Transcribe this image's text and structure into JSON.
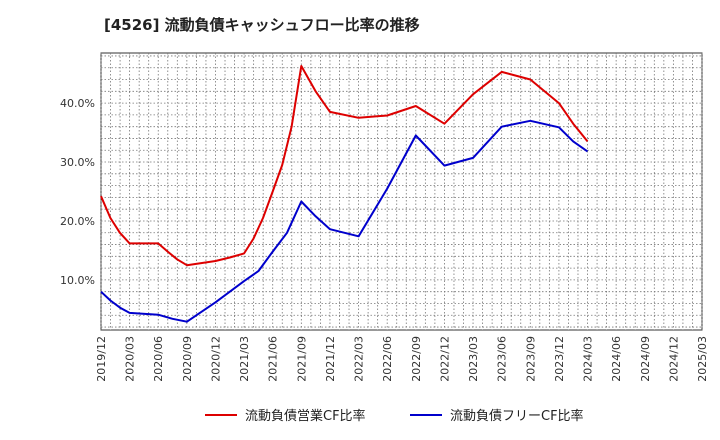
{
  "chart_data": {
    "type": "line",
    "title": "[4526]  流動負債キャッシュフロー比率の推移",
    "xlabel": "",
    "ylabel": "",
    "ylim": [
      1.5,
      48.5
    ],
    "y_ticks": [
      10,
      20,
      30,
      40
    ],
    "y_tick_labels": [
      "10.0%",
      "20.0%",
      "30.0%",
      "40.0%"
    ],
    "x_tick_labels": [
      "2019/12",
      "2020/03",
      "2020/06",
      "2020/09",
      "2020/12",
      "2021/03",
      "2021/06",
      "2021/09",
      "2021/12",
      "2022/03",
      "2022/06",
      "2022/09",
      "2022/12",
      "2023/03",
      "2023/06",
      "2023/09",
      "2023/12",
      "2024/03",
      "2024/06",
      "2024/09",
      "2024/12",
      "2025/03"
    ],
    "grid": true,
    "legend_position": "bottom",
    "series": [
      {
        "name": "流動負債営業CF比率",
        "color": "#dd0000",
        "points": [
          [
            0,
            24.2
          ],
          [
            0.33,
            20.5
          ],
          [
            0.66,
            18.0
          ],
          [
            1,
            16.2
          ],
          [
            2,
            16.2
          ],
          [
            2.33,
            14.8
          ],
          [
            2.66,
            13.5
          ],
          [
            3,
            12.5
          ],
          [
            4,
            13.2
          ],
          [
            4.5,
            13.8
          ],
          [
            5,
            14.5
          ],
          [
            5.33,
            17.0
          ],
          [
            5.66,
            20.5
          ],
          [
            6,
            25.0
          ],
          [
            6.33,
            29.5
          ],
          [
            6.66,
            36.0
          ],
          [
            7,
            46.3
          ],
          [
            7.5,
            42.0
          ],
          [
            8,
            38.5
          ],
          [
            9,
            37.5
          ],
          [
            10,
            37.9
          ],
          [
            11,
            39.5
          ],
          [
            12,
            36.5
          ],
          [
            13,
            41.5
          ],
          [
            14,
            45.3
          ],
          [
            15,
            44.0
          ],
          [
            16,
            40.0
          ],
          [
            16.5,
            36.5
          ],
          [
            17,
            33.5
          ]
        ]
      },
      {
        "name": "流動負債フリーCF比率",
        "color": "#0000cc",
        "points": [
          [
            0,
            8.0
          ],
          [
            0.33,
            6.5
          ],
          [
            0.66,
            5.3
          ],
          [
            1,
            4.4
          ],
          [
            2,
            4.1
          ],
          [
            2.5,
            3.4
          ],
          [
            3,
            2.9
          ],
          [
            4,
            6.2
          ],
          [
            5,
            9.8
          ],
          [
            5.5,
            11.5
          ],
          [
            6,
            14.8
          ],
          [
            6.5,
            18.0
          ],
          [
            7,
            23.3
          ],
          [
            7.5,
            20.8
          ],
          [
            8,
            18.6
          ],
          [
            9,
            17.4
          ],
          [
            10,
            25.5
          ],
          [
            11,
            34.5
          ],
          [
            12,
            29.4
          ],
          [
            13,
            30.7
          ],
          [
            14,
            36.0
          ],
          [
            15,
            37.0
          ],
          [
            16,
            35.9
          ],
          [
            16.5,
            33.5
          ],
          [
            17,
            31.8
          ]
        ]
      }
    ]
  }
}
